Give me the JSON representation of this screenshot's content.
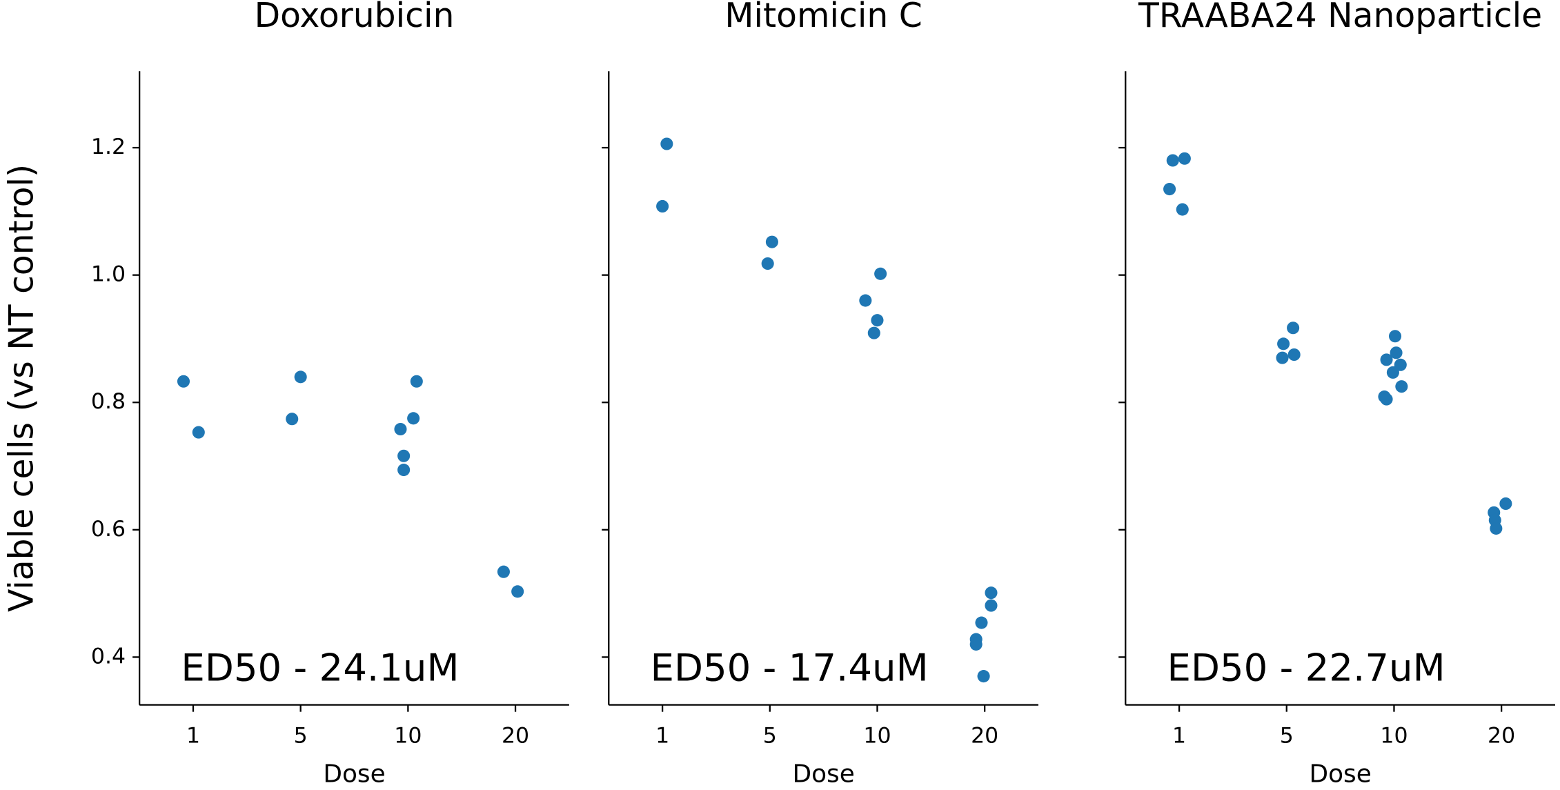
{
  "chart_data": [
    {
      "type": "scatter",
      "title": "Doxorubicin",
      "xlabel": "Dose",
      "ylabel": "Viable cells (vs NT control)",
      "annotation": "ED50 - 24.1uM",
      "color": "#1f77b4",
      "xlim": [
        -0.5,
        3.5
      ],
      "xticks": [
        {
          "value": 0,
          "label": "1"
        },
        {
          "value": 1,
          "label": "5"
        },
        {
          "value": 2,
          "label": "10"
        },
        {
          "value": 3,
          "label": "20"
        }
      ],
      "ylim": [
        0.325,
        1.32
      ],
      "yticks": [
        {
          "value": 0.4,
          "label": "0.4"
        },
        {
          "value": 0.6,
          "label": "0.6"
        },
        {
          "value": 0.8,
          "label": "0.8"
        },
        {
          "value": 1,
          "label": "1.0"
        },
        {
          "value": 1.2,
          "label": "1.2"
        }
      ],
      "x": [
        -0.09,
        0.05,
        0.92,
        1.0,
        1.93,
        2.05,
        2.08,
        1.96,
        1.96,
        2.89,
        3.02
      ],
      "values": [
        0.833,
        0.753,
        0.774,
        0.84,
        0.758,
        0.775,
        0.833,
        0.716,
        0.694,
        0.534,
        0.503
      ]
    },
    {
      "type": "scatter",
      "title": "Mitomicin C",
      "xlabel": "Dose",
      "annotation": "ED50 - 17.4uM",
      "color": "#1f77b4",
      "xlim": [
        -0.5,
        3.5
      ],
      "xticks": [
        {
          "value": 0,
          "label": "1"
        },
        {
          "value": 1,
          "label": "5"
        },
        {
          "value": 2,
          "label": "10"
        },
        {
          "value": 3,
          "label": "20"
        }
      ],
      "ylim": [
        0.325,
        1.32
      ],
      "yticks": [
        0.4,
        0.6,
        0.8,
        1,
        1.2
      ],
      "ytick_labels": false,
      "x": [
        0.04,
        0.0,
        1.02,
        0.98,
        2.03,
        1.89,
        2.0,
        1.97,
        3.06,
        3.06,
        2.97,
        2.92,
        2.92,
        2.99
      ],
      "values": [
        1.206,
        1.108,
        1.052,
        1.018,
        1.002,
        0.96,
        0.929,
        0.909,
        0.501,
        0.481,
        0.454,
        0.428,
        0.42,
        0.37
      ]
    },
    {
      "type": "scatter",
      "title": "TRAABA24 Nanoparticle",
      "xlabel": "Dose",
      "annotation": "ED50 - 22.7uM",
      "color": "#1f77b4",
      "xlim": [
        -0.5,
        3.5
      ],
      "xticks": [
        {
          "value": 0,
          "label": "1"
        },
        {
          "value": 1,
          "label": "5"
        },
        {
          "value": 2,
          "label": "10"
        },
        {
          "value": 3,
          "label": "20"
        }
      ],
      "ylim": [
        0.325,
        1.32
      ],
      "yticks": [
        0.4,
        0.6,
        0.8,
        1,
        1.2
      ],
      "ytick_labels": false,
      "x": [
        -0.06,
        0.05,
        -0.09,
        0.03,
        1.06,
        0.97,
        1.07,
        0.96,
        2.01,
        2.02,
        1.93,
        2.06,
        1.99,
        2.07,
        1.91,
        1.93,
        3.04,
        2.93,
        2.94,
        2.95
      ],
      "values": [
        1.18,
        1.183,
        1.135,
        1.103,
        0.917,
        0.892,
        0.875,
        0.87,
        0.904,
        0.878,
        0.867,
        0.859,
        0.847,
        0.825,
        0.809,
        0.805,
        0.641,
        0.627,
        0.615,
        0.602
      ]
    }
  ]
}
